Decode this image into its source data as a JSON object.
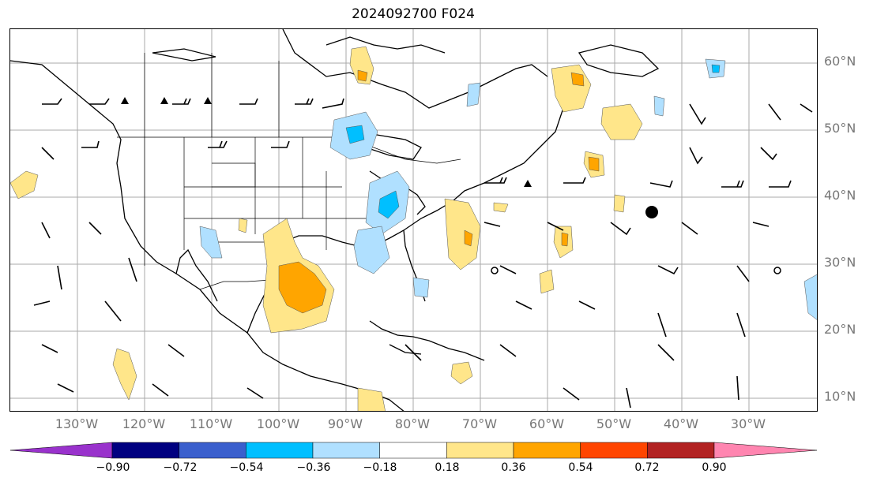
{
  "title": "2024092700 F024",
  "map": {
    "lat_labels": [
      "60°N",
      "50°N",
      "40°N",
      "30°N",
      "20°N",
      "10°N"
    ],
    "lon_labels": [
      "130°W",
      "120°W",
      "110°W",
      "100°W",
      "90°W",
      "80°W",
      "70°W",
      "60°W",
      "50°W",
      "40°W",
      "30°W"
    ],
    "extent": {
      "lon": [
        -138,
        -18
      ],
      "lat": [
        8,
        65
      ]
    }
  },
  "colorbar": {
    "ticks": [
      "−0.90",
      "−0.72",
      "−0.54",
      "−0.36",
      "−0.18",
      "0.18",
      "0.36",
      "0.54",
      "0.72",
      "0.90"
    ],
    "colors": [
      "#9932cc",
      "#000080",
      "#3a5fcd",
      "#00bfff",
      "#b0e0ff",
      "#ffffff",
      "#ffe68a",
      "#ffa500",
      "#ff4500",
      "#b22222",
      "#ff85b0"
    ]
  }
}
